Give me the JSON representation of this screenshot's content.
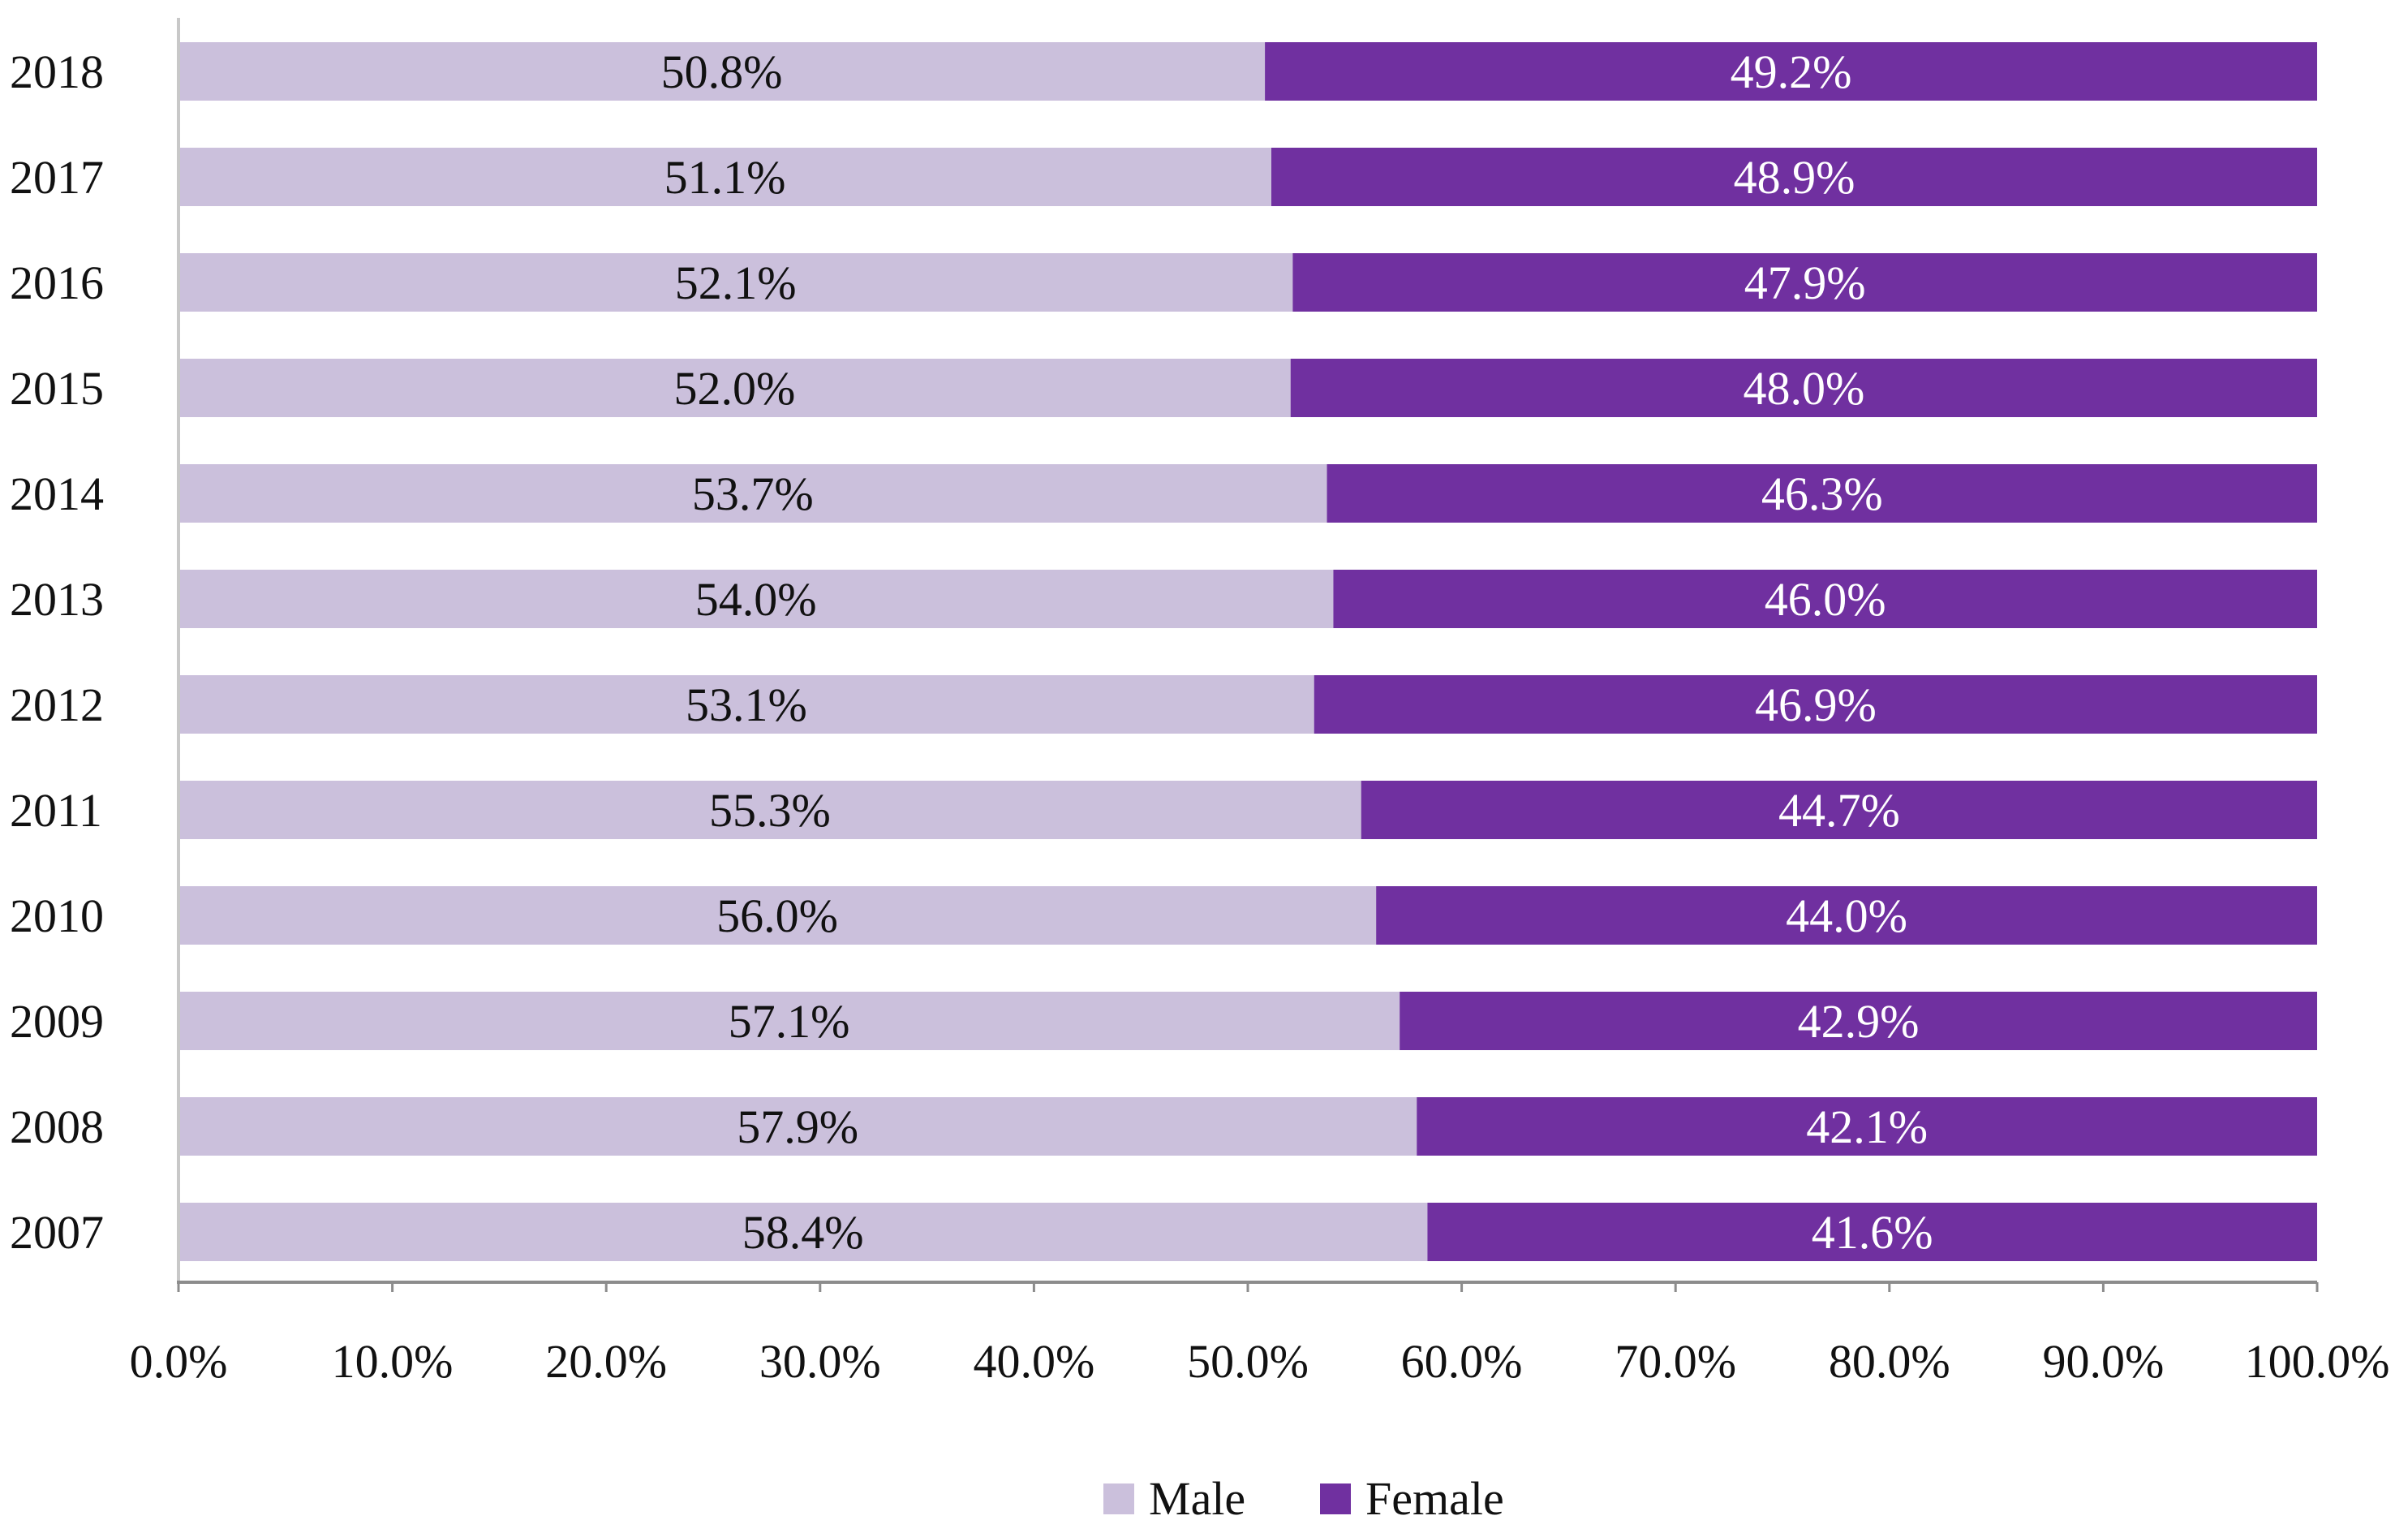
{
  "chart_data": {
    "type": "bar",
    "orientation": "horizontal",
    "stacked": true,
    "categories": [
      "2018",
      "2017",
      "2016",
      "2015",
      "2014",
      "2013",
      "2012",
      "2011",
      "2010",
      "2009",
      "2008",
      "2007"
    ],
    "series": [
      {
        "name": "Male",
        "color": "#cbc0dc",
        "values": [
          50.8,
          51.1,
          52.1,
          52.0,
          53.7,
          54.0,
          53.1,
          55.3,
          56.0,
          57.1,
          57.9,
          58.4
        ],
        "labels": [
          "50.8%",
          "51.1%",
          "52.1%",
          "52.0%",
          "53.7%",
          "54.0%",
          "53.1%",
          "55.3%",
          "56.0%",
          "57.1%",
          "57.9%",
          "58.4%"
        ]
      },
      {
        "name": "Female",
        "color": "#7030a0",
        "values": [
          49.2,
          48.9,
          47.9,
          48.0,
          46.3,
          46.0,
          46.9,
          44.7,
          44.0,
          42.9,
          42.1,
          41.6
        ],
        "labels": [
          "49.2%",
          "48.9%",
          "47.9%",
          "48.0%",
          "46.3%",
          "46.0%",
          "46.9%",
          "44.7%",
          "44.0%",
          "42.9%",
          "42.1%",
          "41.6%"
        ]
      }
    ],
    "xlim": [
      0,
      100
    ],
    "xticks": [
      0,
      10,
      20,
      30,
      40,
      50,
      60,
      70,
      80,
      90,
      100
    ],
    "xtick_labels": [
      "0.0%",
      "10.0%",
      "20.0%",
      "30.0%",
      "40.0%",
      "50.0%",
      "60.0%",
      "70.0%",
      "80.0%",
      "90.0%",
      "100.0%"
    ],
    "title": "",
    "xlabel": "",
    "ylabel": "",
    "grid": false,
    "legend_position": "bottom-center"
  }
}
